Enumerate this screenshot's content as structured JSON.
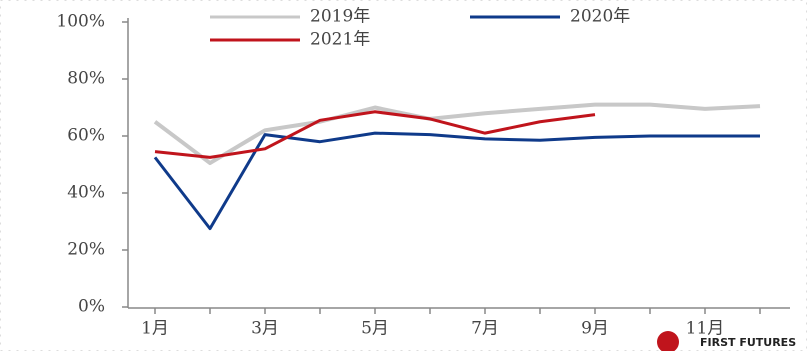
{
  "chart_data": {
    "type": "line",
    "categories": [
      "1月",
      null,
      "3月",
      null,
      "5月",
      null,
      "7月",
      null,
      "9月",
      null,
      "11月",
      null
    ],
    "series": [
      {
        "name": "2019年",
        "color": "#c8c8c8",
        "values": [
          65,
          50.5,
          62,
          65,
          70,
          66,
          68,
          69.5,
          71,
          71,
          69.5,
          70.5
        ]
      },
      {
        "name": "2020年",
        "color": "#0f3a8a",
        "values": [
          52.5,
          27.5,
          60.5,
          58,
          61,
          60.5,
          59,
          58.5,
          59.5,
          60,
          60,
          60
        ]
      },
      {
        "name": "2021年",
        "color": "#c0141c",
        "values": [
          54.5,
          52.5,
          55.5,
          65.5,
          68.5,
          66,
          61,
          65,
          67.5,
          null,
          null,
          null
        ]
      }
    ],
    "ylim": [
      0,
      100
    ],
    "yticks": [
      {
        "value": 0,
        "label": "0%"
      },
      {
        "value": 20,
        "label": "20%"
      },
      {
        "value": 40,
        "label": "40%"
      },
      {
        "value": 60,
        "label": "60%"
      },
      {
        "value": 80,
        "label": "80%"
      },
      {
        "value": 100,
        "label": "100%"
      }
    ],
    "grid": false
  },
  "watermark": "FIRST FUTURES"
}
